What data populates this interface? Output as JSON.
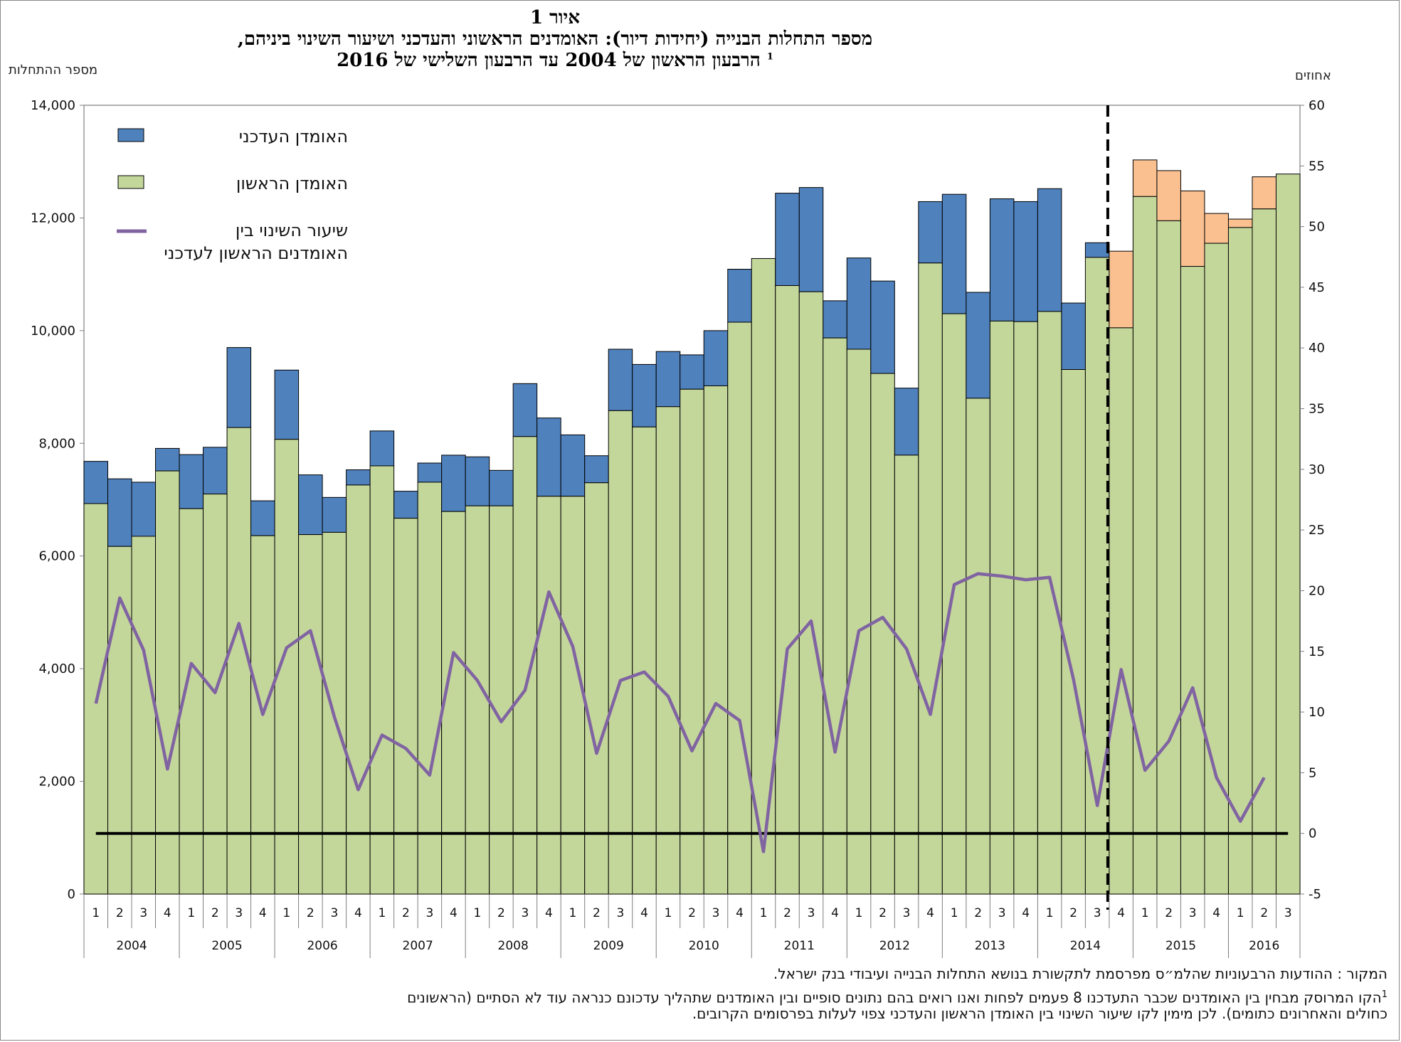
{
  "title": {
    "line1": "איור 1",
    "line2": "מספר התחלות הבנייה (יחידות דיור): האומדנים הראשוני והעדכני ושיעור השינוי ביניהם,",
    "line3": "הרבעון הראשון של 2004 עד הרבעון השלישי של 2016",
    "line3_sup": "1"
  },
  "axes": {
    "left_label": "מספר ההתחלות",
    "right_label": "אחוזים",
    "left_ticks": [
      "0",
      "2,000",
      "4,000",
      "6,000",
      "8,000",
      "10,000",
      "12,000",
      "14,000"
    ],
    "right_ticks": [
      "-5",
      "0",
      "5",
      "10",
      "15",
      "20",
      "25",
      "30",
      "35",
      "40",
      "45",
      "50",
      "55",
      "60"
    ]
  },
  "legend": {
    "updated": "האומדן העדכני",
    "first": "האומדן הראשון",
    "change_line1": "שיעור השינוי בין",
    "change_line2": "האומדנים הראשון לעדכני"
  },
  "footnotes": {
    "source": "המקור : ההודעות הרבעוניות שהלמ״ס מפרסמת לתקשורת בנושא התחלות הבנייה ועיבודי בנק ישראל.",
    "note_sup": "1",
    "note_line1": "הקו המרוסק מבחין בין האומדנים שכבר התעדכנו 8 פעמים לפחות ואנו רואים בהם נתונים סופיים ובין האומדנים שתהליך עדכונם כנראה עוד לא הסתיים (הראשונים",
    "note_line2": "כחולים והאחרונים כתומים). לכן מימין לקו שיעור השינוי בין האומדן הראשון והעדכני צפוי לעלות בפרסומים הקרובים."
  },
  "colors": {
    "first_estimate": "#c4d79b",
    "updated_final": "#4f81bd",
    "updated_provisional": "#fac090",
    "change_line": "#8064a2",
    "zero_line": "#000000"
  },
  "chart_data": {
    "type": "bar",
    "stacked": true,
    "title": "מספר התחלות הבנייה (יחידות דיור): האומדנים הראשוני והעדכני ושיעור השינוי ביניהם",
    "ylabel_left": "מספר ההתחלות",
    "ylabel_right": "אחוזים",
    "ylim_left": [
      0,
      14000
    ],
    "ylim_right": [
      -5,
      60
    ],
    "divider_after_index": 42,
    "years": [
      "2004",
      "2005",
      "2006",
      "2007",
      "2008",
      "2009",
      "2010",
      "2011",
      "2012",
      "2013",
      "2014",
      "2015",
      "2016"
    ],
    "quarters": [
      "1",
      "2",
      "3",
      "4",
      "1",
      "2",
      "3",
      "4",
      "1",
      "2",
      "3",
      "4",
      "1",
      "2",
      "3",
      "4",
      "1",
      "2",
      "3",
      "4",
      "1",
      "2",
      "3",
      "4",
      "1",
      "2",
      "3",
      "4",
      "1",
      "2",
      "3",
      "4",
      "1",
      "2",
      "3",
      "4",
      "1",
      "2",
      "3",
      "4",
      "1",
      "2",
      "3",
      "4",
      "1",
      "2",
      "3",
      "4",
      "1",
      "2",
      "3"
    ],
    "series": [
      {
        "name": "האומדן הראשון",
        "values": [
          6930,
          6170,
          6350,
          7510,
          6840,
          7100,
          8280,
          6360,
          8070,
          6380,
          6420,
          7260,
          7600,
          6670,
          7310,
          6790,
          6890,
          6890,
          8120,
          7060,
          7060,
          7300,
          8580,
          8290,
          8650,
          8960,
          9020,
          10150,
          11280,
          10800,
          10690,
          9870,
          9670,
          9240,
          7790,
          11200,
          10300,
          8800,
          10170,
          10160,
          10340,
          9310,
          11300,
          10050,
          12380,
          11950,
          11140,
          11550,
          11830,
          12160,
          12780
        ]
      },
      {
        "name": "האומדן העדכני",
        "values": [
          7680,
          7370,
          7310,
          7910,
          7800,
          7930,
          9700,
          6980,
          9300,
          7440,
          7040,
          7530,
          8220,
          7150,
          7650,
          7790,
          7760,
          7520,
          9060,
          8450,
          8150,
          7780,
          9670,
          9400,
          9630,
          9570,
          10000,
          11090,
          11270,
          12440,
          12540,
          10530,
          11290,
          10880,
          8980,
          12290,
          12420,
          10680,
          12340,
          12290,
          12520,
          10490,
          11560,
          11410,
          13030,
          12840,
          12480,
          12080,
          11980,
          12730,
          12780
        ]
      },
      {
        "name": "שיעור השינוי בין האומדנים הראשון לעדכני",
        "values": [
          10.7,
          19.4,
          15.1,
          5.3,
          14.0,
          11.6,
          17.3,
          9.8,
          15.3,
          16.7,
          9.6,
          3.6,
          8.1,
          7.0,
          4.8,
          14.9,
          12.6,
          9.2,
          11.8,
          19.9,
          15.4,
          6.6,
          12.6,
          13.3,
          11.3,
          6.8,
          10.7,
          9.3,
          -1.5,
          15.2,
          17.5,
          6.7,
          16.7,
          17.8,
          15.2,
          9.8,
          20.5,
          21.4,
          21.2,
          20.9,
          21.1,
          12.7,
          2.3,
          13.5,
          5.2,
          7.6,
          12.0,
          4.6,
          1.0,
          4.6,
          null
        ]
      }
    ]
  }
}
